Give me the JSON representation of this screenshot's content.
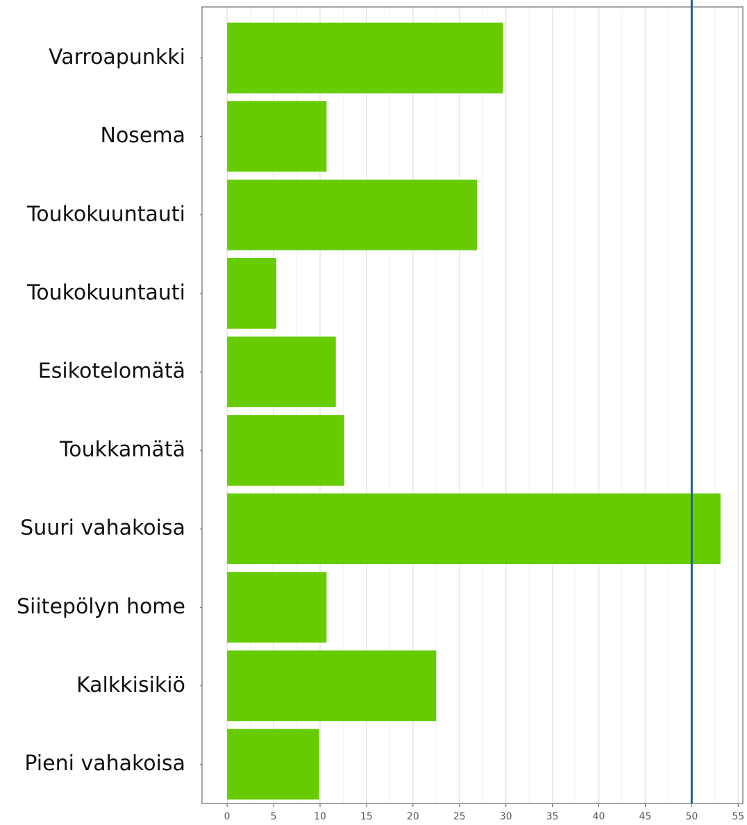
{
  "chart_data": {
    "type": "bar",
    "orientation": "horizontal",
    "categories": [
      "Varroapunkki",
      "Nosema",
      "Toukokuuntauti",
      "Toukokuuntauti",
      "Esikotelomätä",
      "Toukkamätä",
      "Suuri vahakoisa",
      "Siitepölyn home",
      "Kalkkisikiö",
      "Pieni vahakoisa"
    ],
    "values": [
      29.7,
      10.7,
      26.9,
      5.3,
      11.7,
      12.6,
      53.1,
      10.7,
      22.5,
      9.9
    ],
    "color": "#66cc00",
    "xlim": [
      -2.7,
      55.5
    ],
    "xticks": [
      0,
      5,
      10,
      15,
      20,
      25,
      30,
      35,
      40,
      45,
      50,
      55
    ],
    "grid": true,
    "reference_line": {
      "value": 50,
      "color": "#1f6496"
    }
  }
}
